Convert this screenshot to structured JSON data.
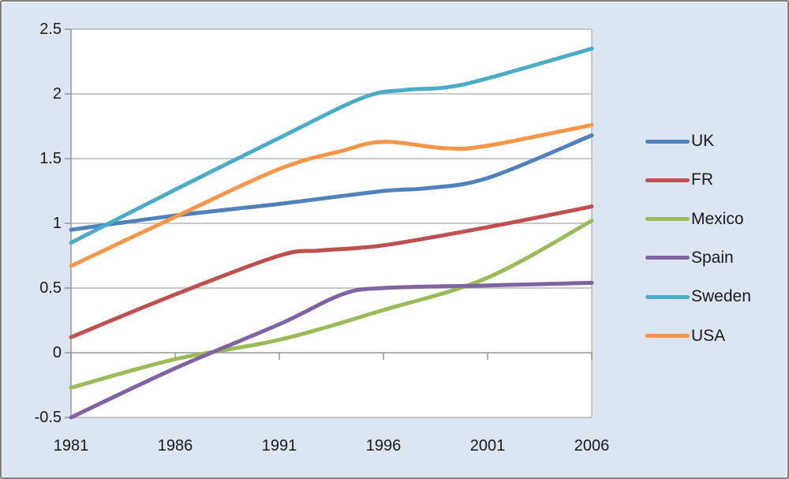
{
  "chart": {
    "background": "#dce6f2",
    "plot_background": "#ffffff",
    "border_color": "#7f7f7f",
    "gridline_color": "#ababab",
    "axis_color": "#8f8f8f",
    "text_color": "#1a1a1a"
  },
  "chart_data": {
    "type": "line",
    "title": "",
    "xlabel": "",
    "ylabel": "",
    "x": [
      1981,
      1986,
      1991,
      1996,
      2001,
      2006
    ],
    "xtick_labels": [
      "1981",
      "1986",
      "1991",
      "1996",
      "2001",
      "2006"
    ],
    "ytick_labels": [
      "2.5",
      "2",
      "1.5",
      "1",
      "0.5",
      "0",
      "-0.5"
    ],
    "ylim": [
      -0.5,
      2.5
    ],
    "ytick_step": 0.5,
    "xlim": [
      1981,
      2006
    ],
    "grid": true,
    "smoothed_lines": true,
    "legend_position": "right",
    "series": [
      {
        "name": "UK",
        "color": "#4F81BD",
        "values": [
          0.95,
          1.06,
          1.15,
          1.25,
          1.35,
          1.68
        ],
        "points": [
          [
            1981,
            0.95
          ],
          [
            1986,
            1.06
          ],
          [
            1991,
            1.15
          ],
          [
            1996,
            1.25
          ],
          [
            1998,
            1.27
          ],
          [
            2001,
            1.35
          ],
          [
            2006,
            1.68
          ]
        ]
      },
      {
        "name": "FR",
        "color": "#C0504D",
        "values": [
          0.12,
          0.45,
          0.75,
          0.83,
          0.97,
          1.13
        ],
        "points": [
          [
            1981,
            0.12
          ],
          [
            1986,
            0.45
          ],
          [
            1991,
            0.75
          ],
          [
            1993,
            0.79
          ],
          [
            1996,
            0.83
          ],
          [
            2001,
            0.97
          ],
          [
            2006,
            1.13
          ]
        ]
      },
      {
        "name": "Mexico",
        "color": "#9BBB59",
        "values": [
          -0.27,
          -0.05,
          0.1,
          0.33,
          0.58,
          1.02
        ],
        "points": [
          [
            1981,
            -0.27
          ],
          [
            1986,
            -0.05
          ],
          [
            1991,
            0.1
          ],
          [
            1996,
            0.33
          ],
          [
            2001,
            0.58
          ],
          [
            2006,
            1.02
          ]
        ]
      },
      {
        "name": "Spain",
        "color": "#8064A2",
        "values": [
          -0.5,
          -0.12,
          0.22,
          0.5,
          0.52,
          0.54
        ],
        "points": [
          [
            1981,
            -0.5
          ],
          [
            1986,
            -0.12
          ],
          [
            1991,
            0.22
          ],
          [
            1994,
            0.45
          ],
          [
            1996,
            0.5
          ],
          [
            2001,
            0.52
          ],
          [
            2006,
            0.54
          ]
        ]
      },
      {
        "name": "Sweden",
        "color": "#4BACC6",
        "values": [
          0.85,
          1.26,
          1.66,
          2.02,
          2.12,
          2.35
        ],
        "points": [
          [
            1981,
            0.85
          ],
          [
            1986,
            1.26
          ],
          [
            1991,
            1.66
          ],
          [
            1995,
            1.97
          ],
          [
            1997,
            2.03
          ],
          [
            1999,
            2.05
          ],
          [
            2001,
            2.12
          ],
          [
            2006,
            2.35
          ]
        ]
      },
      {
        "name": "USA",
        "color": "#F79646",
        "values": [
          0.67,
          1.05,
          1.42,
          1.63,
          1.6,
          1.76
        ],
        "points": [
          [
            1981,
            0.67
          ],
          [
            1986,
            1.05
          ],
          [
            1991,
            1.42
          ],
          [
            1994,
            1.56
          ],
          [
            1996,
            1.63
          ],
          [
            1999,
            1.58
          ],
          [
            2001,
            1.6
          ],
          [
            2006,
            1.76
          ]
        ]
      }
    ]
  },
  "legend": {
    "labels": [
      "UK",
      "FR",
      "Mexico",
      "Spain",
      "Sweden",
      "USA"
    ]
  }
}
